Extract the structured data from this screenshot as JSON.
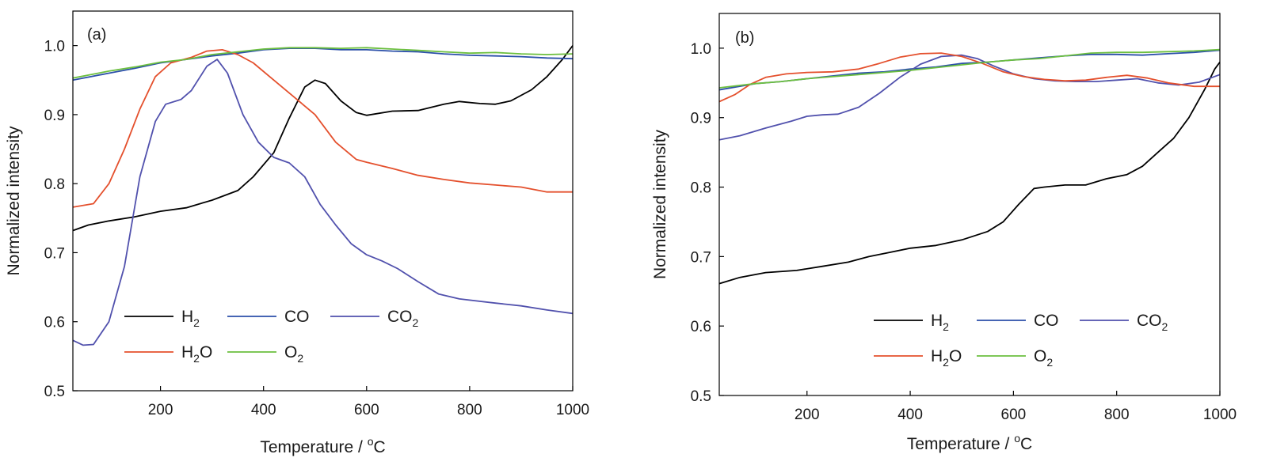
{
  "colors": {
    "H2": "#000000",
    "CO": "#2b4fa9",
    "CO2": "#5151ad",
    "H2O": "#e4502d",
    "O2": "#6cbf3f",
    "axis": "#000000"
  },
  "legend_labels": {
    "H2": {
      "main": "H",
      "sub": "2"
    },
    "CO": {
      "main": "CO",
      "sub": ""
    },
    "CO2": {
      "main": "CO",
      "sub": "2"
    },
    "H2O": {
      "main": "H",
      "sub": "2",
      "tail": "O"
    },
    "O2": {
      "main": "O",
      "sub": "2"
    }
  },
  "xlabel": {
    "text": "Temperature / ",
    "sup": "o",
    "unit": "C"
  },
  "ylabel": "Normalized intensity",
  "chart_data": [
    {
      "type": "line",
      "panel": "(a)",
      "xlim": [
        30,
        1000
      ],
      "ylim": [
        0.5,
        1.05
      ],
      "xticks": [
        200,
        400,
        600,
        800,
        1000
      ],
      "yticks": [
        0.5,
        0.6,
        0.7,
        0.8,
        0.9,
        1.0
      ],
      "ytick_labels": [
        "0.5",
        "0.6",
        "0.7",
        "0.8",
        "0.9",
        "1.0"
      ],
      "legend_position": "lower-left",
      "grid": false,
      "series": [
        {
          "key": "H2",
          "name": "H2",
          "points": [
            [
              30,
              0.732
            ],
            [
              60,
              0.74
            ],
            [
              100,
              0.746
            ],
            [
              150,
              0.752
            ],
            [
              200,
              0.76
            ],
            [
              250,
              0.765
            ],
            [
              300,
              0.776
            ],
            [
              350,
              0.79
            ],
            [
              380,
              0.81
            ],
            [
              420,
              0.845
            ],
            [
              450,
              0.895
            ],
            [
              480,
              0.94
            ],
            [
              500,
              0.95
            ],
            [
              520,
              0.945
            ],
            [
              550,
              0.92
            ],
            [
              580,
              0.903
            ],
            [
              600,
              0.899
            ],
            [
              650,
              0.905
            ],
            [
              700,
              0.906
            ],
            [
              750,
              0.915
            ],
            [
              780,
              0.919
            ],
            [
              820,
              0.916
            ],
            [
              850,
              0.915
            ],
            [
              880,
              0.92
            ],
            [
              920,
              0.936
            ],
            [
              950,
              0.955
            ],
            [
              980,
              0.98
            ],
            [
              1000,
              1.0
            ]
          ]
        },
        {
          "key": "CO",
          "name": "CO",
          "points": [
            [
              30,
              0.95
            ],
            [
              100,
              0.96
            ],
            [
              150,
              0.967
            ],
            [
              200,
              0.975
            ],
            [
              250,
              0.98
            ],
            [
              300,
              0.985
            ],
            [
              350,
              0.989
            ],
            [
              400,
              0.994
            ],
            [
              450,
              0.996
            ],
            [
              500,
              0.996
            ],
            [
              550,
              0.994
            ],
            [
              600,
              0.994
            ],
            [
              650,
              0.992
            ],
            [
              700,
              0.991
            ],
            [
              750,
              0.988
            ],
            [
              800,
              0.986
            ],
            [
              850,
              0.985
            ],
            [
              900,
              0.984
            ],
            [
              950,
              0.982
            ],
            [
              1000,
              0.981
            ]
          ]
        },
        {
          "key": "CO2",
          "name": "CO2",
          "points": [
            [
              30,
              0.573
            ],
            [
              50,
              0.566
            ],
            [
              70,
              0.567
            ],
            [
              100,
              0.6
            ],
            [
              130,
              0.68
            ],
            [
              160,
              0.81
            ],
            [
              190,
              0.89
            ],
            [
              210,
              0.915
            ],
            [
              240,
              0.922
            ],
            [
              260,
              0.935
            ],
            [
              290,
              0.97
            ],
            [
              310,
              0.98
            ],
            [
              330,
              0.96
            ],
            [
              360,
              0.9
            ],
            [
              390,
              0.86
            ],
            [
              420,
              0.838
            ],
            [
              450,
              0.83
            ],
            [
              480,
              0.81
            ],
            [
              510,
              0.77
            ],
            [
              540,
              0.74
            ],
            [
              570,
              0.713
            ],
            [
              600,
              0.697
            ],
            [
              630,
              0.688
            ],
            [
              660,
              0.677
            ],
            [
              700,
              0.658
            ],
            [
              740,
              0.64
            ],
            [
              780,
              0.633
            ],
            [
              850,
              0.627
            ],
            [
              900,
              0.623
            ],
            [
              950,
              0.617
            ],
            [
              1000,
              0.612
            ]
          ]
        },
        {
          "key": "H2O",
          "name": "H2O",
          "points": [
            [
              30,
              0.766
            ],
            [
              70,
              0.771
            ],
            [
              100,
              0.8
            ],
            [
              130,
              0.85
            ],
            [
              160,
              0.908
            ],
            [
              190,
              0.955
            ],
            [
              220,
              0.975
            ],
            [
              260,
              0.983
            ],
            [
              290,
              0.992
            ],
            [
              320,
              0.994
            ],
            [
              350,
              0.987
            ],
            [
              380,
              0.975
            ],
            [
              420,
              0.95
            ],
            [
              460,
              0.925
            ],
            [
              500,
              0.9
            ],
            [
              540,
              0.86
            ],
            [
              580,
              0.835
            ],
            [
              600,
              0.831
            ],
            [
              650,
              0.822
            ],
            [
              700,
              0.812
            ],
            [
              750,
              0.806
            ],
            [
              800,
              0.801
            ],
            [
              850,
              0.798
            ],
            [
              900,
              0.795
            ],
            [
              950,
              0.788
            ],
            [
              1000,
              0.788
            ]
          ]
        },
        {
          "key": "O2",
          "name": "O2",
          "points": [
            [
              30,
              0.953
            ],
            [
              100,
              0.963
            ],
            [
              150,
              0.969
            ],
            [
              200,
              0.976
            ],
            [
              250,
              0.98
            ],
            [
              300,
              0.987
            ],
            [
              350,
              0.991
            ],
            [
              400,
              0.995
            ],
            [
              450,
              0.997
            ],
            [
              500,
              0.997
            ],
            [
              550,
              0.996
            ],
            [
              600,
              0.997
            ],
            [
              650,
              0.995
            ],
            [
              700,
              0.993
            ],
            [
              750,
              0.991
            ],
            [
              800,
              0.989
            ],
            [
              850,
              0.99
            ],
            [
              900,
              0.988
            ],
            [
              950,
              0.987
            ],
            [
              1000,
              0.988
            ]
          ]
        }
      ]
    },
    {
      "type": "line",
      "panel": "(b)",
      "xlim": [
        30,
        1000
      ],
      "ylim": [
        0.5,
        1.05
      ],
      "xticks": [
        200,
        400,
        600,
        800,
        1000
      ],
      "yticks": [
        0.5,
        0.6,
        0.7,
        0.8,
        0.9,
        1.0
      ],
      "ytick_labels": [
        "0.5",
        "0.6",
        "0.7",
        "0.8",
        "0.9",
        "1.0"
      ],
      "legend_position": "lower-right",
      "grid": false,
      "series": [
        {
          "key": "H2",
          "name": "H2",
          "points": [
            [
              30,
              0.661
            ],
            [
              70,
              0.67
            ],
            [
              120,
              0.677
            ],
            [
              180,
              0.68
            ],
            [
              230,
              0.686
            ],
            [
              280,
              0.692
            ],
            [
              320,
              0.7
            ],
            [
              360,
              0.706
            ],
            [
              400,
              0.712
            ],
            [
              450,
              0.716
            ],
            [
              500,
              0.724
            ],
            [
              550,
              0.736
            ],
            [
              580,
              0.75
            ],
            [
              610,
              0.775
            ],
            [
              640,
              0.798
            ],
            [
              660,
              0.8
            ],
            [
              700,
              0.803
            ],
            [
              740,
              0.803
            ],
            [
              780,
              0.812
            ],
            [
              820,
              0.818
            ],
            [
              850,
              0.83
            ],
            [
              880,
              0.85
            ],
            [
              910,
              0.87
            ],
            [
              940,
              0.9
            ],
            [
              970,
              0.94
            ],
            [
              990,
              0.97
            ],
            [
              1000,
              0.98
            ]
          ]
        },
        {
          "key": "CO",
          "name": "CO",
          "points": [
            [
              30,
              0.94
            ],
            [
              100,
              0.949
            ],
            [
              150,
              0.952
            ],
            [
              200,
              0.956
            ],
            [
              250,
              0.96
            ],
            [
              300,
              0.964
            ],
            [
              350,
              0.966
            ],
            [
              400,
              0.97
            ],
            [
              450,
              0.973
            ],
            [
              500,
              0.978
            ],
            [
              550,
              0.98
            ],
            [
              600,
              0.983
            ],
            [
              650,
              0.986
            ],
            [
              700,
              0.989
            ],
            [
              750,
              0.991
            ],
            [
              800,
              0.991
            ],
            [
              850,
              0.99
            ],
            [
              900,
              0.992
            ],
            [
              950,
              0.994
            ],
            [
              1000,
              0.997
            ]
          ]
        },
        {
          "key": "CO2",
          "name": "CO2",
          "points": [
            [
              30,
              0.868
            ],
            [
              70,
              0.874
            ],
            [
              120,
              0.885
            ],
            [
              170,
              0.895
            ],
            [
              200,
              0.902
            ],
            [
              230,
              0.904
            ],
            [
              260,
              0.905
            ],
            [
              300,
              0.915
            ],
            [
              340,
              0.935
            ],
            [
              380,
              0.958
            ],
            [
              420,
              0.977
            ],
            [
              460,
              0.988
            ],
            [
              500,
              0.99
            ],
            [
              530,
              0.985
            ],
            [
              560,
              0.975
            ],
            [
              600,
              0.963
            ],
            [
              640,
              0.956
            ],
            [
              680,
              0.953
            ],
            [
              720,
              0.952
            ],
            [
              760,
              0.952
            ],
            [
              800,
              0.954
            ],
            [
              840,
              0.956
            ],
            [
              880,
              0.95
            ],
            [
              920,
              0.947
            ],
            [
              960,
              0.951
            ],
            [
              1000,
              0.962
            ]
          ]
        },
        {
          "key": "H2O",
          "name": "H2O",
          "points": [
            [
              30,
              0.923
            ],
            [
              60,
              0.933
            ],
            [
              90,
              0.948
            ],
            [
              120,
              0.958
            ],
            [
              160,
              0.963
            ],
            [
              200,
              0.965
            ],
            [
              250,
              0.966
            ],
            [
              300,
              0.97
            ],
            [
              340,
              0.978
            ],
            [
              380,
              0.987
            ],
            [
              420,
              0.992
            ],
            [
              460,
              0.993
            ],
            [
              500,
              0.988
            ],
            [
              540,
              0.978
            ],
            [
              580,
              0.966
            ],
            [
              620,
              0.959
            ],
            [
              660,
              0.955
            ],
            [
              700,
              0.953
            ],
            [
              740,
              0.954
            ],
            [
              780,
              0.958
            ],
            [
              820,
              0.961
            ],
            [
              860,
              0.957
            ],
            [
              900,
              0.95
            ],
            [
              950,
              0.945
            ],
            [
              1000,
              0.945
            ]
          ]
        },
        {
          "key": "O2",
          "name": "O2",
          "points": [
            [
              30,
              0.943
            ],
            [
              100,
              0.949
            ],
            [
              150,
              0.952
            ],
            [
              200,
              0.956
            ],
            [
              250,
              0.959
            ],
            [
              300,
              0.962
            ],
            [
              350,
              0.965
            ],
            [
              400,
              0.968
            ],
            [
              450,
              0.972
            ],
            [
              500,
              0.976
            ],
            [
              550,
              0.98
            ],
            [
              600,
              0.983
            ],
            [
              650,
              0.985
            ],
            [
              700,
              0.989
            ],
            [
              750,
              0.993
            ],
            [
              800,
              0.994
            ],
            [
              850,
              0.994
            ],
            [
              900,
              0.995
            ],
            [
              950,
              0.996
            ],
            [
              1000,
              0.998
            ]
          ]
        }
      ]
    }
  ]
}
